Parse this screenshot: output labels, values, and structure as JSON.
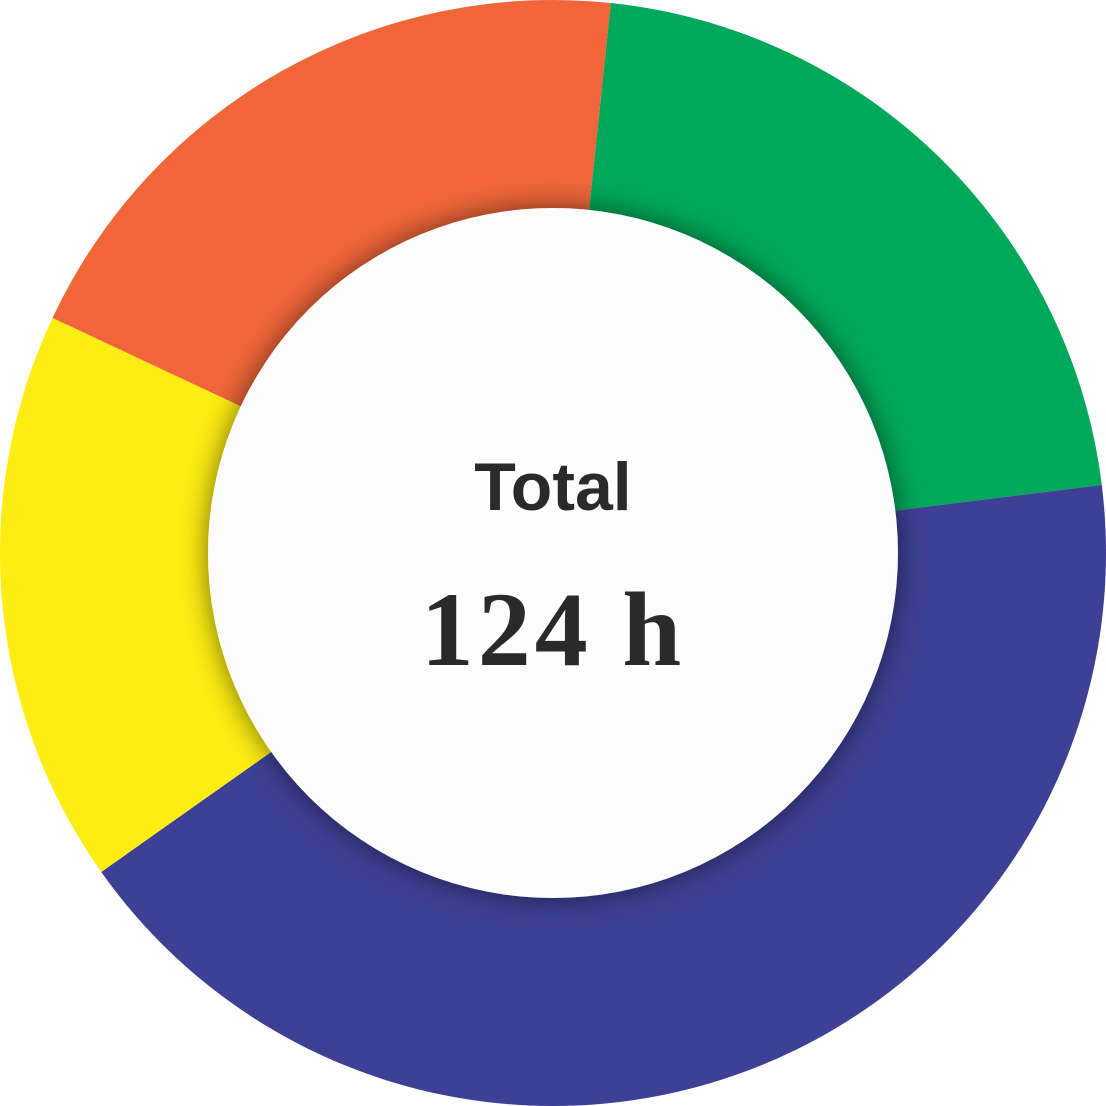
{
  "chart_data": {
    "type": "pie",
    "donut": true,
    "center": {
      "title": "Total",
      "value": "124 h"
    },
    "total": 124,
    "slices": [
      {
        "value": 26.5,
        "color": "#00a859"
      },
      {
        "value": 52.3,
        "color": "#3e4095"
      },
      {
        "value": 20.8,
        "color": "#fded12"
      },
      {
        "value": 24.4,
        "color": "#f06639"
      }
    ],
    "start_angle_deg": 6
  }
}
